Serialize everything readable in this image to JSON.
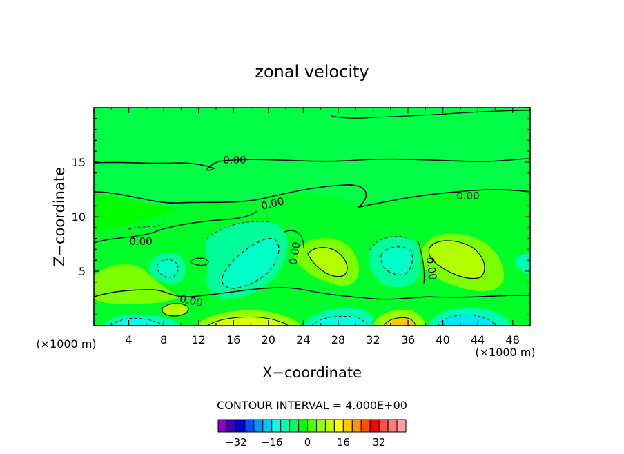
{
  "chart_data": {
    "type": "contour",
    "title": "zonal velocity",
    "xlabel": "X−coordinate",
    "ylabel": "Z−coordinate",
    "x_unit_left": "(×1000 m)",
    "x_unit_right": "(×1000 m)",
    "xlim": [
      0,
      50
    ],
    "ylim": [
      0,
      20
    ],
    "x_ticks": [
      4,
      8,
      12,
      16,
      20,
      24,
      28,
      32,
      36,
      40,
      44,
      48
    ],
    "y_ticks": [
      5,
      10,
      15
    ],
    "contour_interval_text": "CONTOUR INTERVAL = 4.000E+00",
    "contour_label": "0.00",
    "colorbar": {
      "colors": [
        "#8a00c8",
        "#3a00b4",
        "#0000dc",
        "#0050ff",
        "#0096ff",
        "#00c8ff",
        "#00ffe6",
        "#00ffb4",
        "#00ff64",
        "#00ff00",
        "#50ff00",
        "#96ff00",
        "#c8ff00",
        "#ffff00",
        "#ffc800",
        "#ff9600",
        "#ff5000",
        "#ff0000",
        "#ff5050",
        "#ff7a7a",
        "#ffa0a0"
      ],
      "tick_values": [
        -32,
        -16,
        0,
        16,
        32
      ],
      "tick_labels": [
        "−32",
        "−16",
        "0",
        "16",
        "32"
      ],
      "range": [
        -40,
        44
      ]
    },
    "features": [
      {
        "name": "negative-cell-near-x9",
        "x": 9,
        "z": 5.2,
        "value": -8
      },
      {
        "name": "negative-cell-near-x19",
        "x": 19,
        "z": 6.5,
        "value": -12
      },
      {
        "name": "positive-cell-near-x27",
        "x": 27,
        "z": 6.2,
        "value": 12
      },
      {
        "name": "negative-cell-near-x34",
        "x": 34,
        "z": 6.0,
        "value": -12
      },
      {
        "name": "positive-cell-near-x42",
        "x": 42,
        "z": 6.2,
        "value": 12
      },
      {
        "name": "positive-cell-near-x10-low",
        "x": 10,
        "z": 1.5,
        "value": 8
      },
      {
        "name": "positive-jet-near-x18-surface",
        "x": 18,
        "z": 0.3,
        "value": 16
      },
      {
        "name": "negative-jet-near-x5-surface",
        "x": 5,
        "z": 0.3,
        "value": -12
      },
      {
        "name": "negative-jet-near-x29-surface",
        "x": 29,
        "z": 0.3,
        "value": -12
      },
      {
        "name": "positive-jet-near-x34-surface",
        "x": 34,
        "z": 0.2,
        "value": 20
      },
      {
        "name": "negative-jet-near-x42-surface",
        "x": 42,
        "z": 0.3,
        "value": -16
      }
    ]
  }
}
